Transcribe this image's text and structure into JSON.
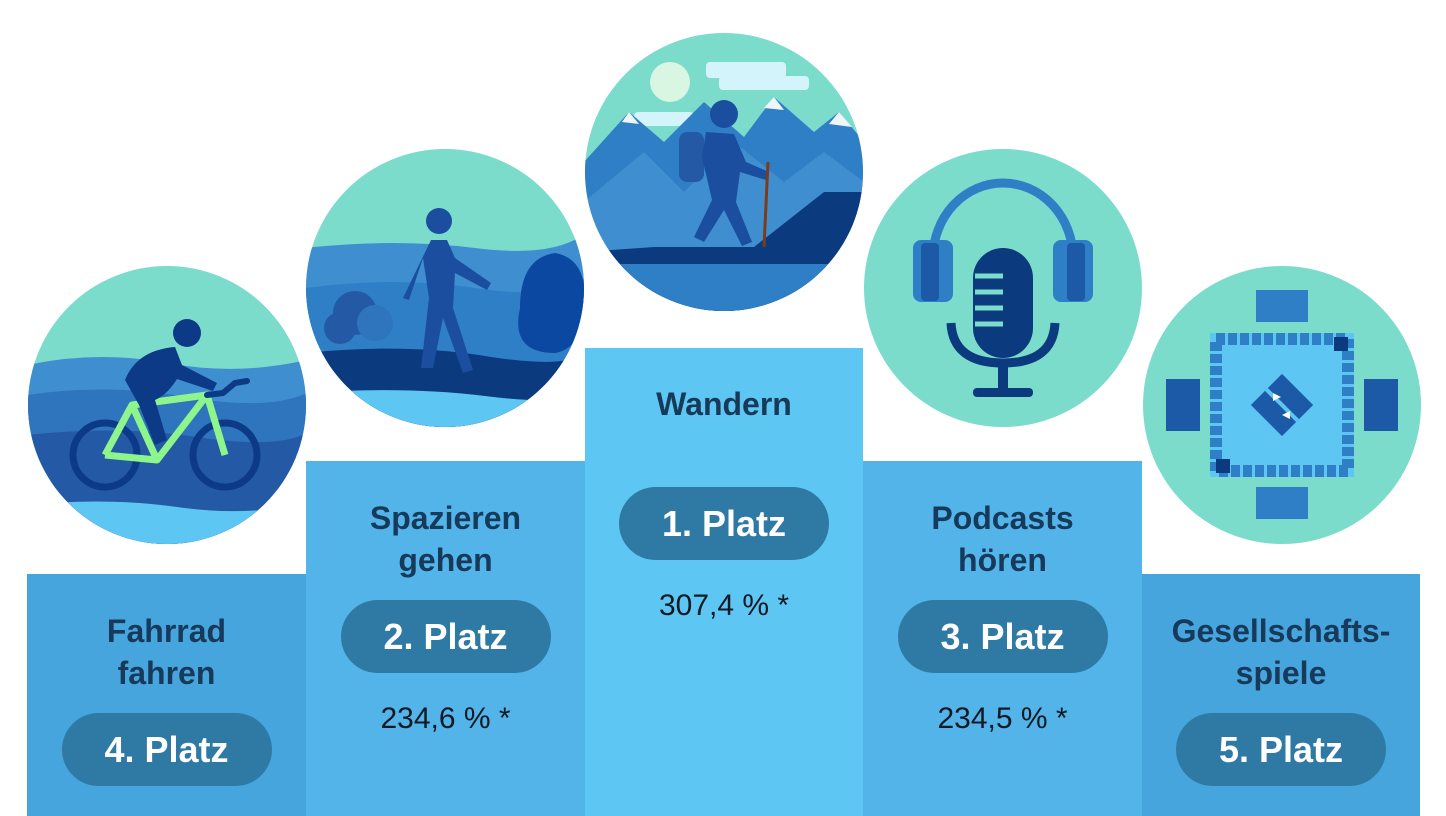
{
  "rankings": [
    {
      "id": "fahrrad",
      "label_lines": [
        "Fahrrad",
        "fahren"
      ],
      "rank": "4. Platz",
      "value": "",
      "icon": "cyclist-icon"
    },
    {
      "id": "spazieren",
      "label_lines": [
        "Spazieren",
        "gehen"
      ],
      "rank": "2. Platz",
      "value": "234,6 % *",
      "icon": "walker-icon"
    },
    {
      "id": "wandern",
      "label_lines": [
        "Wandern"
      ],
      "rank": "1. Platz",
      "value": "307,4 % *",
      "icon": "hiker-icon"
    },
    {
      "id": "podcasts",
      "label_lines": [
        "Podcasts",
        "hören"
      ],
      "rank": "3. Platz",
      "value": "234,5 % *",
      "icon": "podcast-microphone-icon"
    },
    {
      "id": "gesellschaftsspiele",
      "label_lines": [
        "Gesellschafts-",
        "spiele"
      ],
      "rank": "5. Platz",
      "value": "",
      "icon": "board-game-icon"
    }
  ],
  "colors": {
    "circle_bg": "#7cdccb",
    "podium_low": "#46a5dc",
    "podium_mid": "#52b4e8",
    "podium_top": "#5ec6f2",
    "pill": "#2e7aa4",
    "label": "#17395a"
  }
}
